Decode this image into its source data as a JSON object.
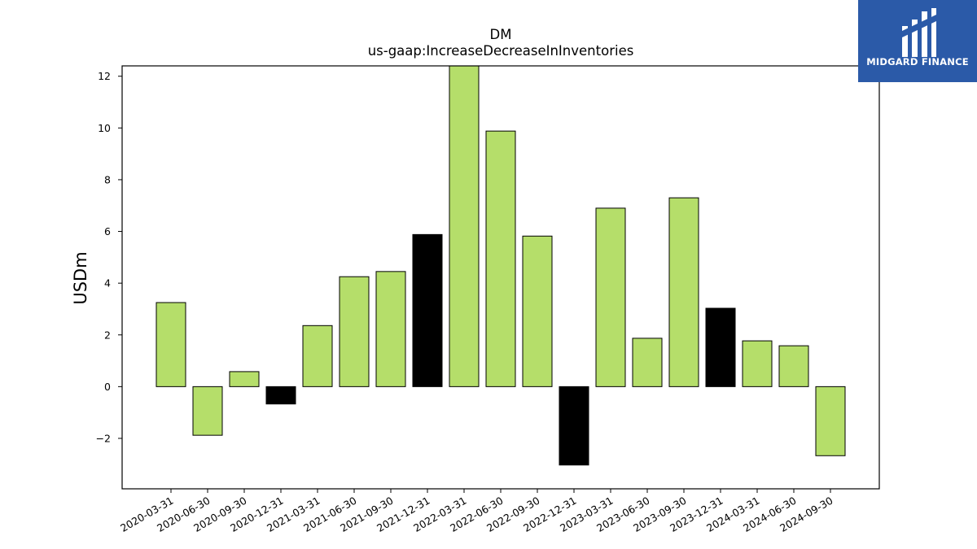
{
  "logo": {
    "text": "MIDGARD FINANCE",
    "background": "#2b5aa8",
    "icon": "midgard-logo-icon"
  },
  "chart_data": {
    "type": "bar",
    "title": "DM",
    "subtitle": "us-gaap:IncreaseDecreaseInInventories",
    "xlabel": "",
    "ylabel": "USDm",
    "ylim": [
      -3.95,
      12.4
    ],
    "yticks": [
      -2,
      0,
      2,
      4,
      6,
      8,
      10,
      12
    ],
    "grid": false,
    "categories": [
      "2020-03-31",
      "2020-06-30",
      "2020-09-30",
      "2020-12-31",
      "2021-03-31",
      "2021-06-30",
      "2021-09-30",
      "2021-12-31",
      "2022-03-31",
      "2022-06-30",
      "2022-09-30",
      "2022-12-31",
      "2023-03-31",
      "2023-06-30",
      "2023-09-30",
      "2023-12-31",
      "2024-03-31",
      "2024-06-30",
      "2024-09-30"
    ],
    "values": [
      3.25,
      -1.88,
      0.58,
      -0.67,
      2.36,
      4.25,
      4.45,
      5.88,
      12.7,
      9.88,
      5.82,
      -3.03,
      6.9,
      1.87,
      7.3,
      3.03,
      1.77,
      1.58,
      -2.67
    ],
    "highlighted": [
      false,
      false,
      false,
      true,
      false,
      false,
      false,
      true,
      false,
      false,
      false,
      true,
      false,
      false,
      false,
      true,
      false,
      false,
      false
    ],
    "colors": {
      "bar": "#b5de6a",
      "highlight": "#000000",
      "edge": "#000000"
    }
  }
}
